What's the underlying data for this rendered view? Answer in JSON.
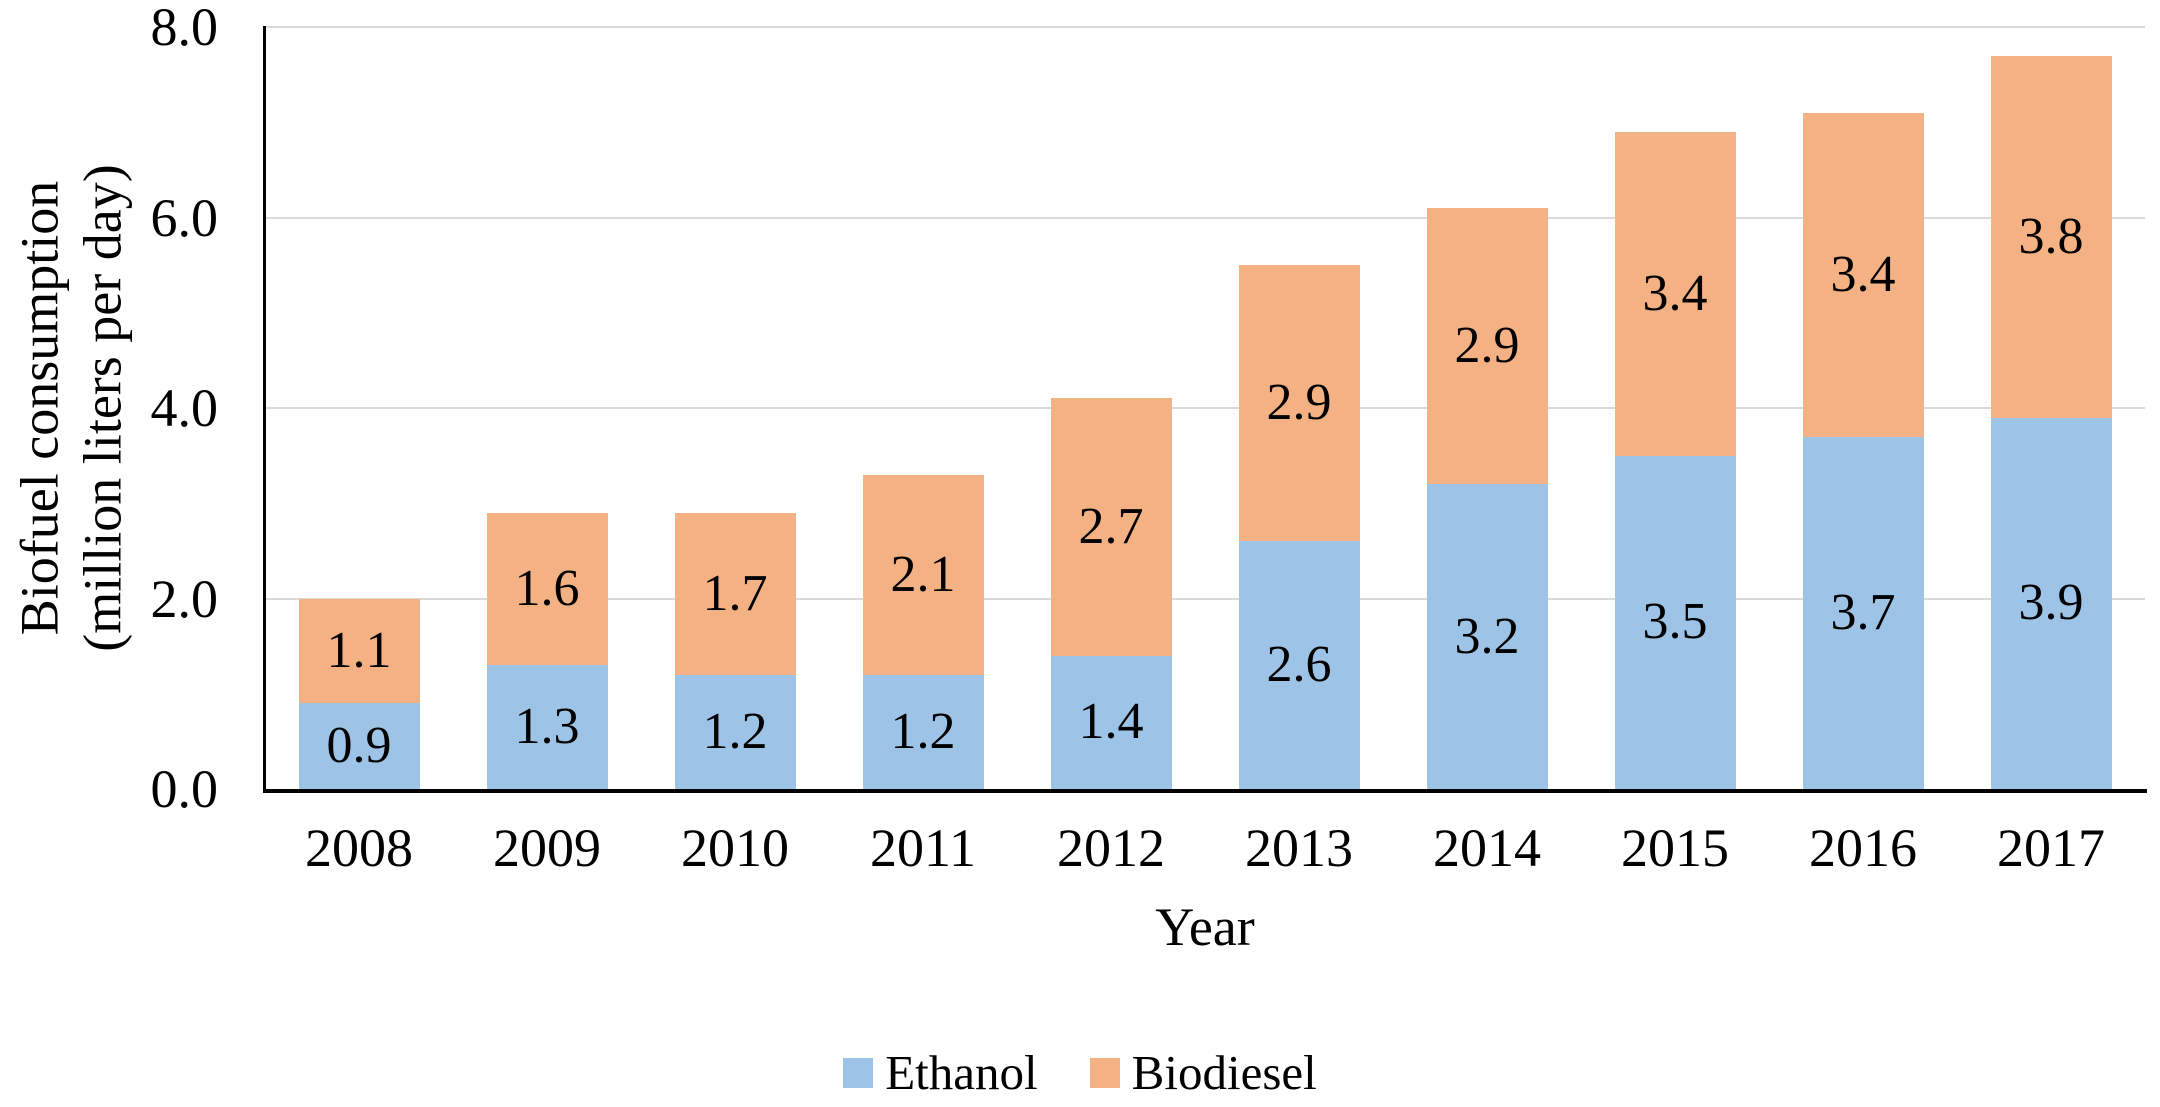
{
  "chart_data": {
    "type": "bar",
    "stacked": true,
    "title": "",
    "xlabel": "Year",
    "ylabel": "Biofuel consumption (million liters per day)",
    "ylabel_lines": [
      "Biofuel consumption",
      "(million liters per day)"
    ],
    "categories": [
      "2008",
      "2009",
      "2010",
      "2011",
      "2012",
      "2013",
      "2014",
      "2015",
      "2016",
      "2017"
    ],
    "series": [
      {
        "name": "Ethanol",
        "color": "#9DC3E6",
        "values": [
          0.9,
          1.3,
          1.2,
          1.2,
          1.4,
          2.6,
          3.2,
          3.5,
          3.7,
          3.9
        ],
        "labels": [
          "0.9",
          "1.3",
          "1.2",
          "1.2",
          "1.4",
          "2.6",
          "3.2",
          "3.5",
          "3.7",
          "3.9"
        ]
      },
      {
        "name": "Biodiesel",
        "color": "#F4B183",
        "values": [
          1.1,
          1.6,
          1.7,
          2.1,
          2.7,
          2.9,
          2.9,
          3.4,
          3.4,
          3.8
        ],
        "labels": [
          "1.1",
          "1.6",
          "1.7",
          "2.1",
          "2.7",
          "2.9",
          "2.9",
          "3.4",
          "3.4",
          "3.8"
        ]
      }
    ],
    "totals": [
      2.0,
      2.9,
      2.9,
      3.3,
      4.1,
      5.5,
      6.1,
      6.9,
      7.1,
      7.7
    ],
    "ylim": [
      0,
      8
    ],
    "yticks": [
      0,
      2,
      4,
      6,
      8
    ],
    "ytick_labels": [
      "0.0",
      "2.0",
      "4.0",
      "6.0",
      "8.0"
    ],
    "grid": "horizontal",
    "gridline_color": "#DADADA",
    "axis_color": "#000000",
    "data_labels": "centered",
    "legend_position": "bottom"
  }
}
